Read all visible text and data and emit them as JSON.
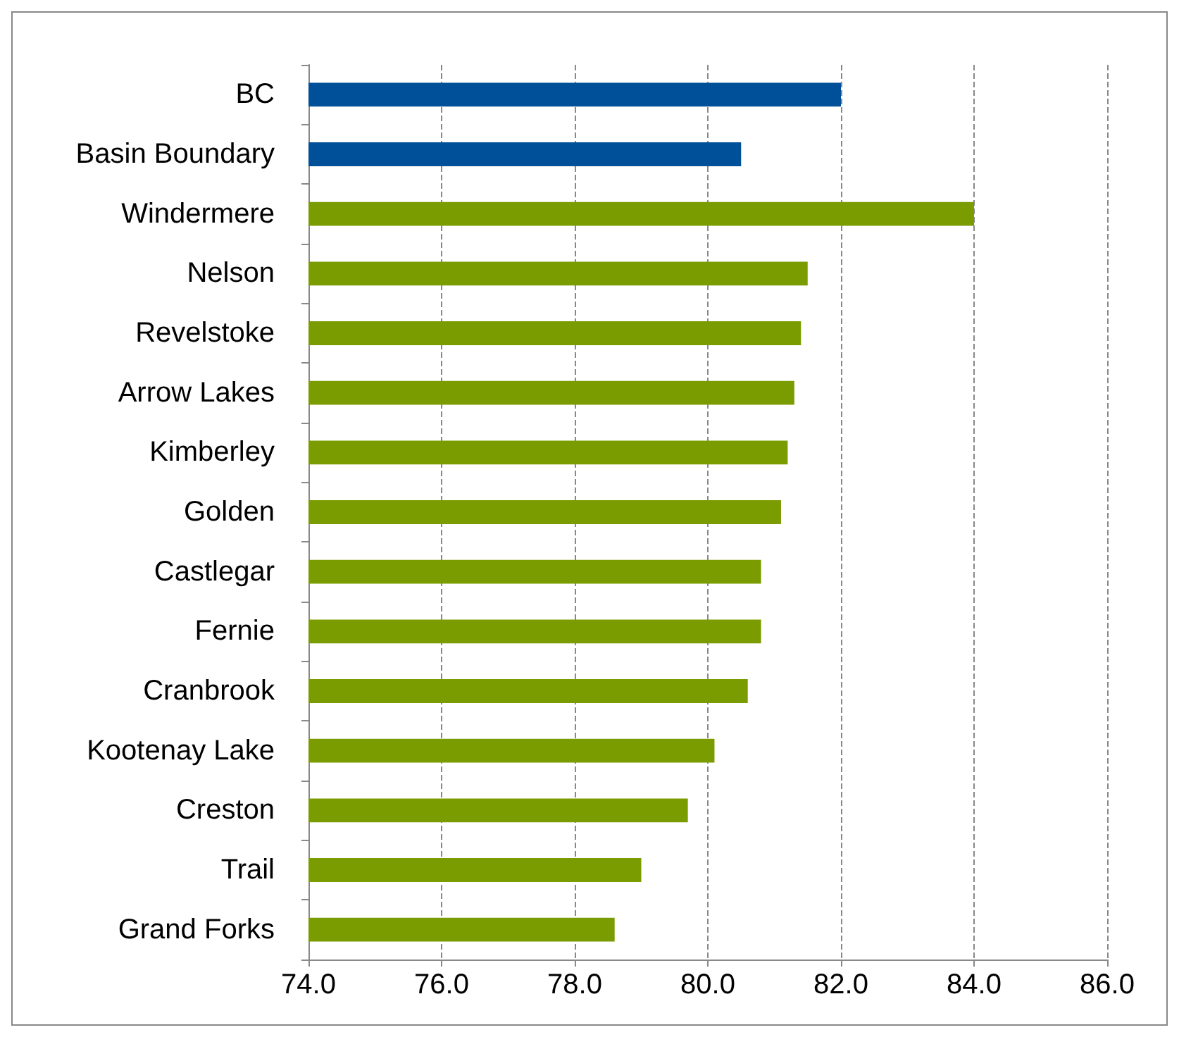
{
  "chart_data": {
    "type": "bar",
    "orientation": "horizontal",
    "categories": [
      "BC",
      "Basin Boundary",
      "Windermere",
      "Nelson",
      "Revelstoke",
      "Arrow Lakes",
      "Kimberley",
      "Golden",
      "Castlegar",
      "Fernie",
      "Cranbrook",
      "Kootenay Lake",
      "Creston",
      "Trail",
      "Grand Forks"
    ],
    "values": [
      82.0,
      80.5,
      84.0,
      81.5,
      81.4,
      81.3,
      81.2,
      81.1,
      80.8,
      80.8,
      80.6,
      80.1,
      79.7,
      79.0,
      78.6
    ],
    "colors": [
      "#004f99",
      "#004f99",
      "#7a9c00",
      "#7a9c00",
      "#7a9c00",
      "#7a9c00",
      "#7a9c00",
      "#7a9c00",
      "#7a9c00",
      "#7a9c00",
      "#7a9c00",
      "#7a9c00",
      "#7a9c00",
      "#7a9c00",
      "#7a9c00"
    ],
    "xlim": [
      74,
      86
    ],
    "xticks": [
      {
        "value": 74,
        "label": "74.0"
      },
      {
        "value": 76,
        "label": "76.0"
      },
      {
        "value": 78,
        "label": "78.0"
      },
      {
        "value": 80,
        "label": "80.0"
      },
      {
        "value": 82,
        "label": "82.0"
      },
      {
        "value": 84,
        "label": "84.0"
      },
      {
        "value": 86,
        "label": "86.0"
      }
    ],
    "grid": "x",
    "line_style": "dashed"
  }
}
